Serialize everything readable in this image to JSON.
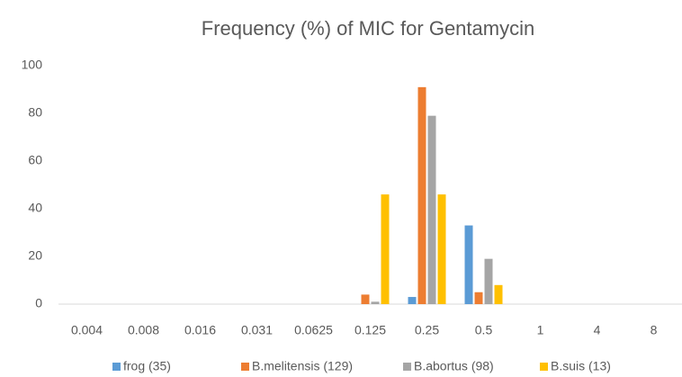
{
  "chart_data": {
    "type": "bar",
    "title": "Frequency (%) of MIC for Gentamycin",
    "categories": [
      "0.004",
      "0.008",
      "0.016",
      "0.031",
      "0.0625",
      "0.125",
      "0.25",
      "0.5",
      "1",
      "4",
      "8"
    ],
    "series": [
      {
        "name": "frog (35)",
        "color": "#5b9bd5",
        "values": [
          0,
          0,
          0,
          0,
          0,
          0,
          3,
          33,
          0,
          0,
          0
        ]
      },
      {
        "name": "B.melitensis (129)",
        "color": "#ed7d31",
        "values": [
          0,
          0,
          0,
          0,
          0,
          4,
          91,
          5,
          0,
          0,
          0
        ]
      },
      {
        "name": "B.abortus (98)",
        "color": "#a5a5a5",
        "values": [
          0,
          0,
          0,
          0,
          0,
          1,
          79,
          19,
          0,
          0,
          0
        ]
      },
      {
        "name": "B.suis (13)",
        "color": "#ffc000",
        "values": [
          0,
          0,
          0,
          0,
          0,
          46,
          46,
          8,
          0,
          0,
          0
        ]
      }
    ],
    "ylim": [
      0,
      100
    ],
    "yticks": [
      0,
      20,
      40,
      60,
      80,
      100
    ],
    "grid": false,
    "legend": "bottom"
  }
}
